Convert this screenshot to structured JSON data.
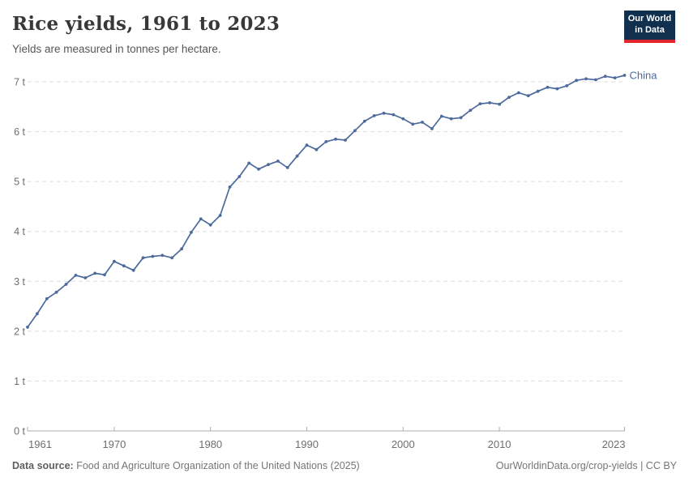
{
  "header": {
    "title": "Rice yields, 1961 to 2023",
    "subtitle": "Yields are measured in tonnes per hectare."
  },
  "logo": {
    "line1": "Our World",
    "line2": "in Data"
  },
  "footer": {
    "source_label": "Data source:",
    "source_text": " Food and Agriculture Organization of the United Nations (2025)",
    "link_text": "OurWorldinData.org/crop-yields | CC BY"
  },
  "colors": {
    "line": "#4C6A9C",
    "series_label": "#4C6A9C",
    "grid": "#dedede",
    "axis": "#adadad",
    "tick_label": "#6e6e6e",
    "logo_bg": "#10304e",
    "logo_red": "#e2262c"
  },
  "chart_data": {
    "type": "line",
    "title": "Rice yields, 1961 to 2023",
    "subtitle": "Yields are measured in tonnes per hectare.",
    "unit": "t",
    "xlabel": "",
    "ylabel": "tonnes per hectare",
    "ylim": [
      0,
      7
    ],
    "xlim": [
      1961,
      2023
    ],
    "grid": "horizontal-dashed",
    "legend_position": "end-of-line",
    "yticks": [
      0,
      1,
      2,
      3,
      4,
      5,
      6,
      7
    ],
    "ytick_labels": [
      "0 t",
      "1 t",
      "2 t",
      "3 t",
      "4 t",
      "5 t",
      "6 t",
      "7 t"
    ],
    "xticks": [
      1961,
      1970,
      1980,
      1990,
      2000,
      2010,
      2023
    ],
    "xtick_labels": [
      "1961",
      "1970",
      "1980",
      "1990",
      "2000",
      "2010",
      "2023"
    ],
    "x": [
      1961,
      1962,
      1963,
      1964,
      1965,
      1966,
      1967,
      1968,
      1969,
      1970,
      1971,
      1972,
      1973,
      1974,
      1975,
      1976,
      1977,
      1978,
      1979,
      1980,
      1981,
      1982,
      1983,
      1984,
      1985,
      1986,
      1987,
      1988,
      1989,
      1990,
      1991,
      1992,
      1993,
      1994,
      1995,
      1996,
      1997,
      1998,
      1999,
      2000,
      2001,
      2002,
      2003,
      2004,
      2005,
      2006,
      2007,
      2008,
      2009,
      2010,
      2011,
      2012,
      2013,
      2014,
      2015,
      2016,
      2017,
      2018,
      2019,
      2020,
      2021,
      2022,
      2023
    ],
    "series": [
      {
        "name": "China",
        "values": [
          2.08,
          2.35,
          2.65,
          2.78,
          2.94,
          3.12,
          3.07,
          3.16,
          3.13,
          3.4,
          3.31,
          3.22,
          3.47,
          3.5,
          3.52,
          3.47,
          3.65,
          3.98,
          4.25,
          4.13,
          4.32,
          4.89,
          5.1,
          5.37,
          5.25,
          5.34,
          5.41,
          5.28,
          5.51,
          5.73,
          5.64,
          5.8,
          5.85,
          5.83,
          6.02,
          6.21,
          6.32,
          6.37,
          6.34,
          6.26,
          6.15,
          6.19,
          6.06,
          6.31,
          6.26,
          6.28,
          6.43,
          6.56,
          6.58,
          6.55,
          6.69,
          6.78,
          6.72,
          6.81,
          6.89,
          6.86,
          6.92,
          7.03,
          7.06,
          7.04,
          7.11,
          7.08,
          7.13
        ]
      }
    ]
  }
}
